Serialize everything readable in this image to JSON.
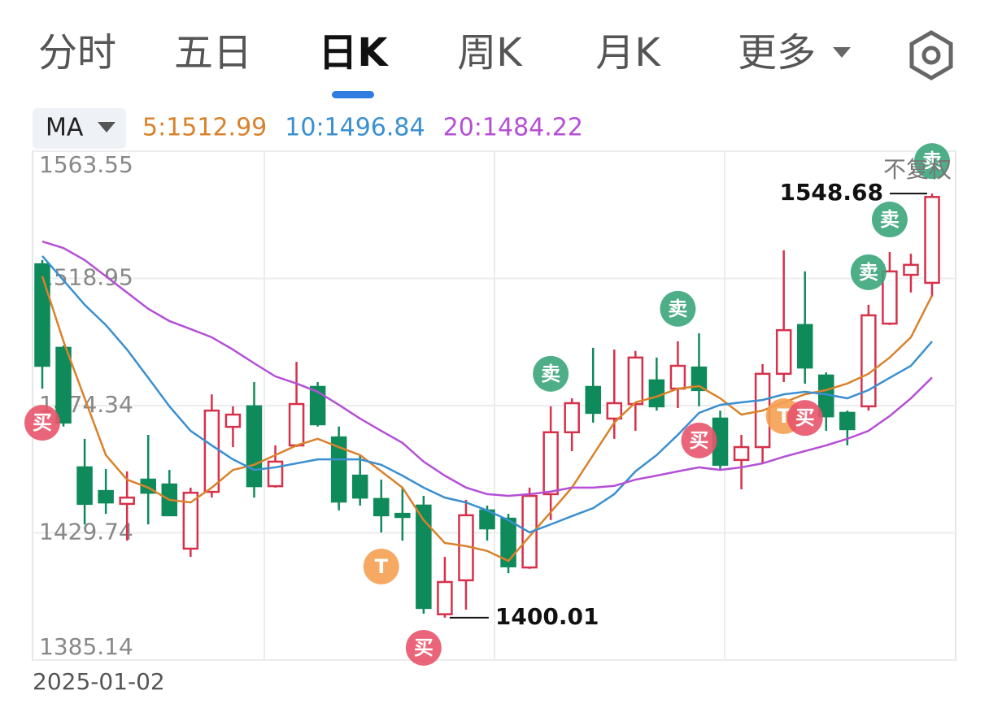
{
  "tabs": [
    "分时",
    "五日",
    "日K",
    "周K",
    "月K",
    "更多"
  ],
  "active_tab": 2,
  "indicator": "MA",
  "chart_data": {
    "type": "candlestick",
    "adjustment": "不复权",
    "x_start_label": "2025-01-02",
    "ylim": [
      1385.14,
      1563.55
    ],
    "yticks": [
      1385.14,
      1429.74,
      1474.34,
      1518.95,
      1563.55
    ],
    "grid": true,
    "up_color": "#d6304a",
    "down_color": "#0f8a5a",
    "open": [
      1523.9,
      1494.6,
      1452.7,
      1444.4,
      1439.9,
      1448.4,
      1446.7,
      1424.2,
      1444.1,
      1466.9,
      1474.1,
      1446.1,
      1460.4,
      1480.9,
      1463.2,
      1449.8,
      1441.6,
      1436.4,
      1439.3,
      1401.2,
      1413.1,
      1437.6,
      1434.7,
      1417.6,
      1443.3,
      1465.0,
      1480.9,
      1469.8,
      1474.9,
      1483.2,
      1480.3,
      1487.7,
      1469.8,
      1455.3,
      1459.8,
      1485.5,
      1502.6,
      1484.9,
      1471.8,
      1474.1,
      1503.1,
      1520.2,
      1517.4
    ],
    "high": [
      1525.4,
      1495.4,
      1462.7,
      1452.1,
      1451.3,
      1464.1,
      1451.8,
      1445.6,
      1478.3,
      1474.1,
      1482.6,
      1460.4,
      1489.7,
      1482.6,
      1467.0,
      1457.0,
      1448.4,
      1445.6,
      1442.7,
      1421.3,
      1441.3,
      1439.3,
      1436.4,
      1445.6,
      1474.1,
      1476.9,
      1494.6,
      1494.0,
      1493.5,
      1491.2,
      1496.9,
      1499.7,
      1472.6,
      1464.1,
      1488.9,
      1528.8,
      1521.4,
      1486.0,
      1472.6,
      1509.7,
      1528.2,
      1527.6,
      1548.68
    ],
    "low": [
      1480.3,
      1467.0,
      1432.7,
      1436.4,
      1427.0,
      1432.7,
      1435.9,
      1421.3,
      1442.1,
      1459.8,
      1442.1,
      1445.6,
      1459.8,
      1467.0,
      1437.6,
      1439.3,
      1429.9,
      1427.0,
      1401.4,
      1400.01,
      1402.8,
      1427.0,
      1415.6,
      1417.1,
      1434.2,
      1458.4,
      1468.4,
      1462.7,
      1465.5,
      1472.6,
      1473.5,
      1474.1,
      1451.8,
      1445.0,
      1454.1,
      1482.6,
      1482.0,
      1465.5,
      1460.4,
      1472.6,
      1502.6,
      1514.0,
      1512.5
    ],
    "close": [
      1488.3,
      1468.4,
      1439.9,
      1440.4,
      1442.1,
      1443.8,
      1435.9,
      1443.8,
      1472.6,
      1471.2,
      1446.1,
      1454.7,
      1474.9,
      1467.8,
      1440.7,
      1442.1,
      1435.9,
      1435.3,
      1403.4,
      1412.5,
      1435.9,
      1431.3,
      1418.0,
      1442.7,
      1465.0,
      1475.2,
      1471.8,
      1475.2,
      1491.2,
      1474.1,
      1488.3,
      1479.8,
      1453.6,
      1459.8,
      1485.5,
      1500.8,
      1487.7,
      1470.6,
      1466.1,
      1506.0,
      1521.4,
      1523.7,
      1547.5
    ],
    "max_label_index": 42,
    "min_label_index": 19,
    "ma": [
      {
        "label": "5:1512.99",
        "color": "#d9822b",
        "values": [
          1519.7,
          1496.9,
          1476.9,
          1457.0,
          1448.4,
          1445.6,
          1441.3,
          1440.4,
          1445.6,
          1451.8,
          1453.6,
          1457.0,
          1460.4,
          1462.7,
          1459.8,
          1457.0,
          1451.3,
          1445.6,
          1434.2,
          1426.2,
          1425.1,
          1423.4,
          1419.9,
          1428.5,
          1437.0,
          1445.6,
          1457.0,
          1468.4,
          1475.5,
          1477.5,
          1480.3,
          1481.2,
          1476.9,
          1471.2,
          1472.6,
          1475.5,
          1478.3,
          1479.8,
          1482.1,
          1485.5,
          1491.2,
          1498.3,
          1512.99
        ]
      },
      {
        "label": "10:1496.84",
        "color": "#3a8fd0",
        "values": [
          1526.8,
          1518.3,
          1509.7,
          1502.6,
          1494.0,
          1484.1,
          1474.1,
          1465.5,
          1460.4,
          1455.5,
          1451.8,
          1452.7,
          1454.1,
          1455.5,
          1455.5,
          1455.5,
          1453.6,
          1449.8,
          1445.6,
          1442.1,
          1440.4,
          1437.6,
          1434.2,
          1429.9,
          1432.7,
          1435.6,
          1438.4,
          1443.3,
          1451.3,
          1457.0,
          1464.1,
          1471.8,
          1474.6,
          1475.5,
          1476.3,
          1478.3,
          1479.2,
          1478.3,
          1476.9,
          1479.8,
          1484.1,
          1488.3,
          1496.84
        ]
      },
      {
        "label": "20:1484.22",
        "color": "#b44fd6",
        "values": [
          1531.9,
          1529.6,
          1525.4,
          1519.7,
          1514.0,
          1508.3,
          1504.0,
          1501.2,
          1498.3,
          1494.0,
          1489.2,
          1484.6,
          1482.1,
          1479.2,
          1474.6,
          1469.8,
          1465.5,
          1461.3,
          1454.7,
          1449.8,
          1445.6,
          1443.3,
          1442.7,
          1443.3,
          1444.2,
          1445.6,
          1445.6,
          1446.2,
          1448.4,
          1449.8,
          1451.3,
          1452.7,
          1451.8,
          1452.7,
          1454.1,
          1456.4,
          1458.4,
          1460.4,
          1462.7,
          1465.5,
          1470.7,
          1476.9,
          1484.22
        ]
      }
    ],
    "signals": [
      {
        "text": "买",
        "index": 0,
        "color": "#e8546a"
      },
      {
        "text": "T",
        "index": 16,
        "color": "#f5a052"
      },
      {
        "text": "买",
        "index": 18,
        "color": "#e8546a"
      },
      {
        "text": "卖",
        "index": 24,
        "color": "#3aa57a"
      },
      {
        "text": "卖",
        "index": 30,
        "color": "#3aa57a"
      },
      {
        "text": "买",
        "index": 31,
        "color": "#e8546a"
      },
      {
        "text": "T",
        "index": 35,
        "color": "#f5a052"
      },
      {
        "text": "买",
        "index": 36,
        "color": "#e8546a"
      },
      {
        "text": "卖",
        "index": 39,
        "color": "#3aa57a"
      },
      {
        "text": "卖",
        "index": 40,
        "color": "#3aa57a"
      },
      {
        "text": "卖",
        "index": 42,
        "color": "#3aa57a"
      }
    ]
  }
}
